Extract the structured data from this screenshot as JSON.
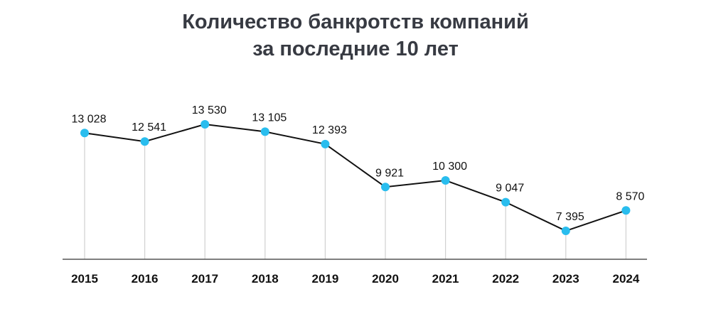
{
  "chart_data": {
    "type": "line",
    "title_line1": "Количество банкротств компаний",
    "title_line2": "за последние 10 лет",
    "categories": [
      "2015",
      "2016",
      "2017",
      "2018",
      "2019",
      "2020",
      "2021",
      "2022",
      "2023",
      "2024"
    ],
    "values": [
      13028,
      12541,
      13530,
      13105,
      12393,
      9921,
      10300,
      9047,
      7395,
      8570
    ],
    "data_labels": [
      "13 028",
      "12 541",
      "13 530",
      "13 105",
      "12 393",
      "9 921",
      "10 300",
      "9 047",
      "7 395",
      "8 570"
    ],
    "xlabel": "",
    "ylabel": "",
    "grid": false,
    "colors": {
      "line": "#111111",
      "marker": "#29bdee",
      "drop_line": "#d0d0d0",
      "axis": "#555555"
    }
  }
}
